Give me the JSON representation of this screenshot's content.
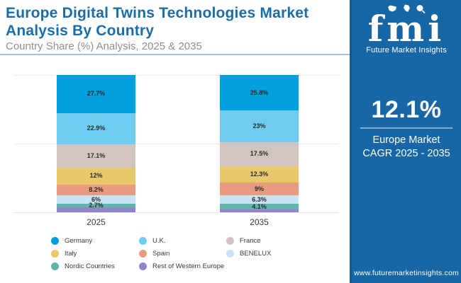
{
  "header": {
    "title": "Europe Digital Twins Technologies Market Analysis By Country",
    "subtitle": "Country Share (%) Analysis, 2025 & 2035"
  },
  "chart_data": {
    "type": "bar",
    "stacked": true,
    "categories": [
      "2025",
      "2035"
    ],
    "series": [
      {
        "name": "Germany",
        "color": "#00a0dc",
        "values": [
          27.7,
          25.8
        ],
        "labels": [
          "27.7%",
          "25.8%"
        ]
      },
      {
        "name": "U.K.",
        "color": "#6fccf0",
        "values": [
          22.9,
          23.0
        ],
        "labels": [
          "22.9%",
          "23%"
        ]
      },
      {
        "name": "France",
        "color": "#d2c5bf",
        "values": [
          17.1,
          17.5
        ],
        "labels": [
          "17.1%",
          "17.5%"
        ]
      },
      {
        "name": "Italy",
        "color": "#e9c86b",
        "values": [
          12.0,
          12.3
        ],
        "labels": [
          "12%",
          "12.3%"
        ]
      },
      {
        "name": "Spain",
        "color": "#e99b80",
        "values": [
          8.2,
          9.0
        ],
        "labels": [
          "8.2%",
          "9%"
        ]
      },
      {
        "name": "BENELUX",
        "color": "#c8e3f3",
        "values": [
          6.0,
          6.3
        ],
        "labels": [
          "6%",
          "6.3%"
        ]
      },
      {
        "name": "Nordic Countries",
        "color": "#62b4ac",
        "values": [
          2.7,
          4.1
        ],
        "labels": [
          "2.7%",
          "4.1%"
        ]
      },
      {
        "name": "Rest of Western Europe",
        "color": "#8e85cb",
        "values": [
          3.4,
          2.0
        ],
        "labels": [
          "",
          ""
        ]
      }
    ],
    "ylim": [
      0,
      100
    ],
    "grid": "horizontal",
    "legend_position": "bottom"
  },
  "sidebar": {
    "background_color": "#1767a6",
    "logo": {
      "word": "fmi",
      "tagline": "Future Market Insights"
    },
    "stat": {
      "value": "12.1%",
      "caption_line1": "Europe Market",
      "caption_line2": "CAGR 2025 - 2035"
    },
    "website": "www.futuremarketinsights.com"
  }
}
